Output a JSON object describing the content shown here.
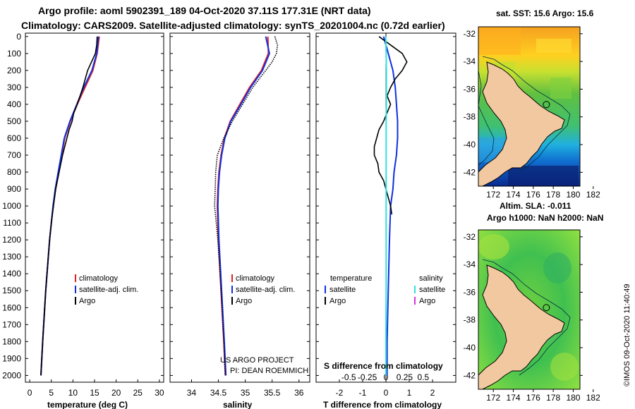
{
  "titles": {
    "line1": "Argo profile: aoml 5902391_189 04-Oct-2020 37.11S 177.31E (NRT data)",
    "line2": "Climatology: CARS2009. Satellite-adjusted climatology: synTS_20201004.nc (0.72d earlier)"
  },
  "depth_ticks": [
    "0",
    "100",
    "200",
    "300",
    "400",
    "500",
    "600",
    "700",
    "800",
    "900",
    "1000",
    "1100",
    "1200",
    "1300",
    "1400",
    "1500",
    "1600",
    "1700",
    "1800",
    "1900",
    "2000"
  ],
  "colors": {
    "climatology": "#e02020",
    "satellite": "#1030e0",
    "argo": "#000000",
    "sat_salinity": "#30e0e0",
    "argo_salinity": "#e030e0",
    "land": "#f2c8a0"
  },
  "chart_data": [
    {
      "type": "line",
      "title": "",
      "xlabel": "temperature (deg C)",
      "ylabel": "depth",
      "xlim": [
        -1,
        31
      ],
      "ylim": [
        2040,
        -20
      ],
      "x_ticks": [
        "0",
        "5",
        "10",
        "15",
        "20",
        "25",
        "30"
      ],
      "x_tick_values": [
        0,
        5,
        10,
        15,
        20,
        25,
        30
      ],
      "legend": [
        "climatology",
        "satellite-adj. clim.",
        "Argo"
      ],
      "legend_placement": "bottom-right",
      "series": [
        {
          "name": "climatology",
          "depth": [
            0,
            100,
            200,
            300,
            400,
            500,
            600,
            700,
            800,
            900,
            1000,
            1200,
            1500,
            1800,
            2000
          ],
          "values": [
            16.1,
            15.6,
            14.6,
            12.8,
            11.0,
            9.4,
            8.1,
            7.4,
            6.7,
            6.0,
            5.4,
            4.6,
            3.7,
            3.0,
            2.6
          ]
        },
        {
          "name": "satellite-adj. clim.",
          "depth": [
            0,
            100,
            200,
            300,
            400,
            500,
            600,
            700,
            800,
            900,
            1000,
            1200,
            1500,
            1800,
            2000
          ],
          "values": [
            15.9,
            15.5,
            14.4,
            12.5,
            10.9,
            9.3,
            8.0,
            7.3,
            6.6,
            5.9,
            5.4,
            4.6,
            3.7,
            3.0,
            2.6
          ]
        },
        {
          "name": "Argo",
          "depth": [
            0,
            50,
            100,
            150,
            200,
            300,
            400,
            450,
            500,
            550,
            600,
            650,
            700,
            800,
            900,
            1000,
            1100,
            1200,
            1500,
            1800,
            2000
          ],
          "values": [
            15.6,
            15.5,
            15.2,
            14.3,
            13.4,
            12.3,
            11.0,
            10.2,
            9.8,
            9.1,
            8.6,
            8.1,
            7.6,
            6.8,
            6.0,
            5.5,
            5.0,
            4.6,
            3.7,
            3.0,
            2.6
          ]
        }
      ]
    },
    {
      "type": "line",
      "title": "",
      "xlabel": "salinity",
      "ylabel": "depth",
      "xlim": [
        33.6,
        36.2
      ],
      "ylim": [
        2040,
        -20
      ],
      "x_ticks": [
        "34",
        "34.5",
        "35",
        "35.5",
        "36"
      ],
      "x_tick_values": [
        34,
        34.5,
        35,
        35.5,
        36
      ],
      "legend": [
        "climatology",
        "satellite-adj. clim.",
        "Argo"
      ],
      "legend_placement": "bottom-right",
      "annotations": [
        "US ARGO PROJECT",
        "PI: DEAN ROEMMICH"
      ],
      "series": [
        {
          "name": "climatology",
          "depth": [
            0,
            100,
            200,
            300,
            400,
            500,
            600,
            700,
            800,
            900,
            1000,
            1200,
            1500,
            1800,
            2000
          ],
          "values": [
            35.42,
            35.43,
            35.3,
            35.08,
            34.9,
            34.72,
            34.61,
            34.55,
            34.51,
            34.49,
            34.48,
            34.5,
            34.55,
            34.6,
            34.63
          ]
        },
        {
          "name": "satellite-adj. clim.",
          "depth": [
            0,
            100,
            200,
            300,
            400,
            500,
            600,
            700,
            800,
            900,
            1000,
            1200,
            1500,
            1800,
            2000
          ],
          "values": [
            35.38,
            35.45,
            35.32,
            35.1,
            34.92,
            34.73,
            34.62,
            34.56,
            34.52,
            34.5,
            34.49,
            34.51,
            34.56,
            34.61,
            34.64
          ]
        },
        {
          "name": "Argo",
          "depth": [
            0,
            50,
            100,
            150,
            200,
            250,
            300,
            400,
            500,
            600,
            700,
            800,
            900,
            1000,
            1100,
            1200,
            1500,
            1800,
            2000
          ],
          "values": [
            35.55,
            35.6,
            35.58,
            35.5,
            35.38,
            35.26,
            35.14,
            34.95,
            34.76,
            34.6,
            34.48,
            34.45,
            34.44,
            34.43,
            34.46,
            34.49,
            34.55,
            34.6,
            34.63
          ]
        }
      ]
    },
    {
      "type": "line",
      "title": "",
      "xlabel": "T difference from climatology",
      "xlabel_top": "S difference from climatology",
      "ylabel": "depth",
      "xlim": [
        -3,
        3
      ],
      "ylim": [
        2040,
        -20
      ],
      "x_ticks": [
        "-2",
        "-1",
        "0",
        "1",
        "2"
      ],
      "x_tick_values": [
        -2,
        -1,
        0,
        1,
        2
      ],
      "s_ticks": [
        "-0.5",
        "-0.25",
        "0",
        "0.25",
        "0.5"
      ],
      "s_tick_values": [
        -0.5,
        -0.25,
        0,
        0.25,
        0.5
      ],
      "legend_left_title": "temperature",
      "legend_right_title": "salinity",
      "legend": [
        "satellite",
        "Argo",
        "satellite",
        "Argo"
      ],
      "legend_placement": "bottom",
      "series": [
        {
          "name": "T satellite",
          "depth": [
            0,
            100,
            200,
            300,
            400,
            500,
            600,
            700,
            800,
            900,
            1000,
            1200,
            1500,
            1800,
            2000
          ],
          "values": [
            -0.1,
            0.1,
            0.3,
            0.4,
            0.45,
            0.5,
            0.5,
            0.45,
            0.35,
            0.3,
            0.2,
            0.15,
            0.1,
            0.05,
            0.05
          ]
        },
        {
          "name": "T Argo",
          "depth": [
            0,
            50,
            100,
            150,
            200,
            250,
            300,
            350,
            400,
            450,
            500,
            550,
            600,
            650,
            700,
            750,
            800,
            850,
            900,
            950,
            1000,
            1050
          ],
          "values": [
            -0.3,
            0.2,
            0.7,
            0.9,
            0.7,
            0.4,
            0.2,
            0.05,
            0.2,
            0.05,
            -0.1,
            -0.3,
            -0.4,
            -0.5,
            -0.5,
            -0.35,
            -0.3,
            -0.1,
            0.0,
            0.1,
            0.2,
            0.25
          ]
        },
        {
          "name": "S satellite",
          "depth": [
            0,
            100,
            200,
            300,
            400,
            500,
            600,
            700,
            800,
            900,
            1000,
            1200,
            1500,
            1800,
            2000
          ],
          "values": [
            -0.01,
            0.01,
            0.02,
            0.02,
            0.02,
            0.01,
            0.01,
            0.01,
            0.01,
            0.01,
            0.01,
            0.01,
            0.01,
            0.0,
            0.0
          ]
        }
      ]
    }
  ],
  "maps": {
    "sst": {
      "title": "sat. SST: 15.6 Argo: 15.6"
    },
    "sla": {
      "title1": "Altim. SLA: -0.011",
      "title2": "Argo h1000: NaN h2000: NaN"
    },
    "lat_ticks": [
      "-32",
      "-34",
      "-36",
      "-38",
      "-40",
      "-42"
    ],
    "lat_values": [
      -32,
      -34,
      -36,
      -38,
      -40,
      -42
    ],
    "lon_ticks": [
      "172",
      "174",
      "176",
      "178",
      "180",
      "182"
    ],
    "lon_values": [
      172,
      174,
      176,
      178,
      180,
      182
    ],
    "float_lat": -37.11,
    "float_lon": 177.31
  },
  "credit": "©IMOS 09-Oct-2020 11:40:49"
}
